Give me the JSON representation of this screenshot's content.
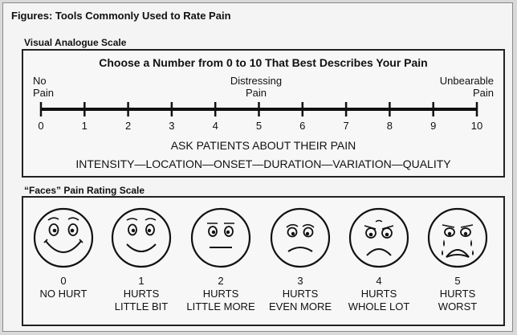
{
  "figure_title": "Figures: Tools Commonly Used to Rate Pain",
  "vas": {
    "label": "Visual Analogue Scale",
    "heading": "Choose a Number from 0 to 10 That Best Describes Your Pain",
    "anchor_left": [
      "No",
      "Pain"
    ],
    "anchor_mid": [
      "Distressing",
      "Pain"
    ],
    "anchor_right": [
      "Unbearable",
      "Pain"
    ],
    "ticks": [
      "0",
      "1",
      "2",
      "3",
      "4",
      "5",
      "6",
      "7",
      "8",
      "9",
      "10"
    ],
    "ask": "ASK PATIENTS ABOUT THEIR PAIN",
    "dimensions": "INTENSITY—LOCATION—ONSET—DURATION—VARIATION—QUALITY"
  },
  "faces": {
    "label": "“Faces” Pain Rating Scale",
    "items": [
      {
        "score": "0",
        "line1": "NO HURT",
        "line2": ""
      },
      {
        "score": "1",
        "line1": "HURTS",
        "line2": "LITTLE BIT"
      },
      {
        "score": "2",
        "line1": "HURTS",
        "line2": "LITTLE MORE"
      },
      {
        "score": "3",
        "line1": "HURTS",
        "line2": "EVEN MORE"
      },
      {
        "score": "4",
        "line1": "HURTS",
        "line2": "WHOLE LOT"
      },
      {
        "score": "5",
        "line1": "HURTS",
        "line2": "WORST"
      }
    ]
  }
}
